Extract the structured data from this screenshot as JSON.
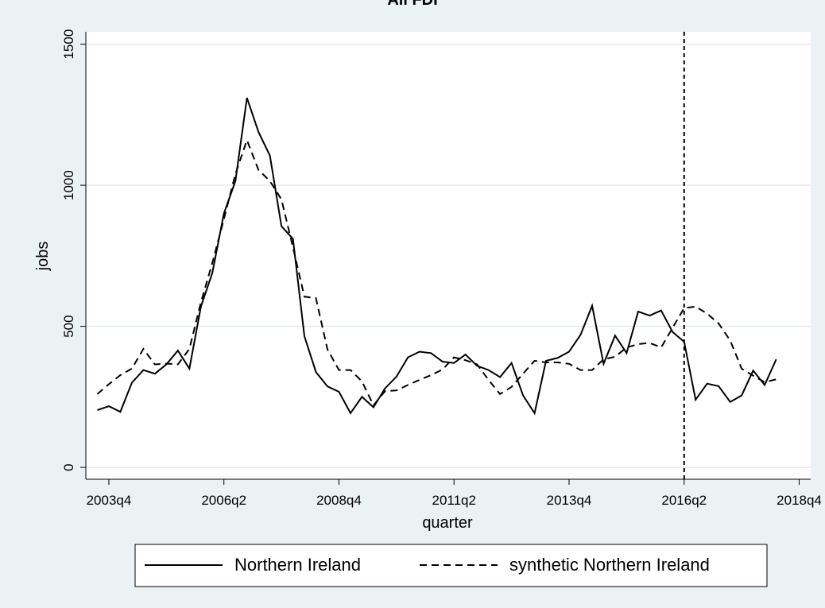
{
  "chart_data": {
    "type": "line",
    "title": "All FDI",
    "xlabel": "quarter",
    "ylabel": "jobs",
    "x": [
      174,
      175,
      176,
      177,
      178,
      179,
      180,
      181,
      182,
      183,
      184,
      185,
      186,
      187,
      188,
      189,
      190,
      191,
      192,
      193,
      194,
      195,
      196,
      197,
      198,
      199,
      200,
      201,
      202,
      203,
      204,
      205,
      206,
      207,
      208,
      209,
      210,
      211,
      212,
      213,
      214,
      215,
      216,
      217,
      218,
      219,
      220,
      221,
      222,
      223,
      224,
      225,
      226,
      227,
      228,
      229,
      230,
      231,
      232,
      233
    ],
    "series": [
      {
        "name": "Northern Ireland",
        "color": "#000000",
        "dash": "none",
        "values": [
          203,
          217,
          197,
          300,
          345,
          332,
          365,
          414,
          350,
          570,
          690,
          900,
          1015,
          1310,
          1190,
          1105,
          855,
          810,
          465,
          338,
          287,
          268,
          192,
          250,
          213,
          280,
          322,
          390,
          410,
          405,
          375,
          370,
          400,
          360,
          345,
          320,
          370,
          255,
          192,
          378,
          388,
          410,
          470,
          573,
          367,
          467,
          405,
          552,
          538,
          556,
          480,
          445,
          240,
          297,
          288,
          232,
          255,
          343,
          292,
          383
        ]
      },
      {
        "name": "synthetic Northern Ireland",
        "color": "#000000",
        "dash": "9,6",
        "values": [
          260,
          295,
          327,
          350,
          420,
          365,
          368,
          365,
          420,
          585,
          725,
          880,
          1040,
          1160,
          1055,
          1015,
          950,
          780,
          605,
          600,
          418,
          345,
          345,
          305,
          220,
          270,
          273,
          292,
          310,
          327,
          347,
          390,
          380,
          365,
          310,
          260,
          285,
          332,
          378,
          372,
          372,
          367,
          345,
          345,
          383,
          392,
          425,
          437,
          441,
          425,
          495,
          565,
          570,
          545,
          510,
          450,
          350,
          325,
          302,
          312
        ]
      }
    ],
    "xlim": [
      173,
      236
    ],
    "ylim": [
      -42,
      1544
    ],
    "xticks": [
      {
        "value": 175,
        "label": "2003q4"
      },
      {
        "value": 185,
        "label": "2006q2"
      },
      {
        "value": 195,
        "label": "2008q4"
      },
      {
        "value": 205,
        "label": "2011q2"
      },
      {
        "value": 215,
        "label": "2013q4"
      },
      {
        "value": 225,
        "label": "2016q2"
      },
      {
        "value": 235,
        "label": "2018q4"
      }
    ],
    "yticks": [
      0,
      500,
      1000,
      1500
    ],
    "xline": 225,
    "grid": true
  }
}
